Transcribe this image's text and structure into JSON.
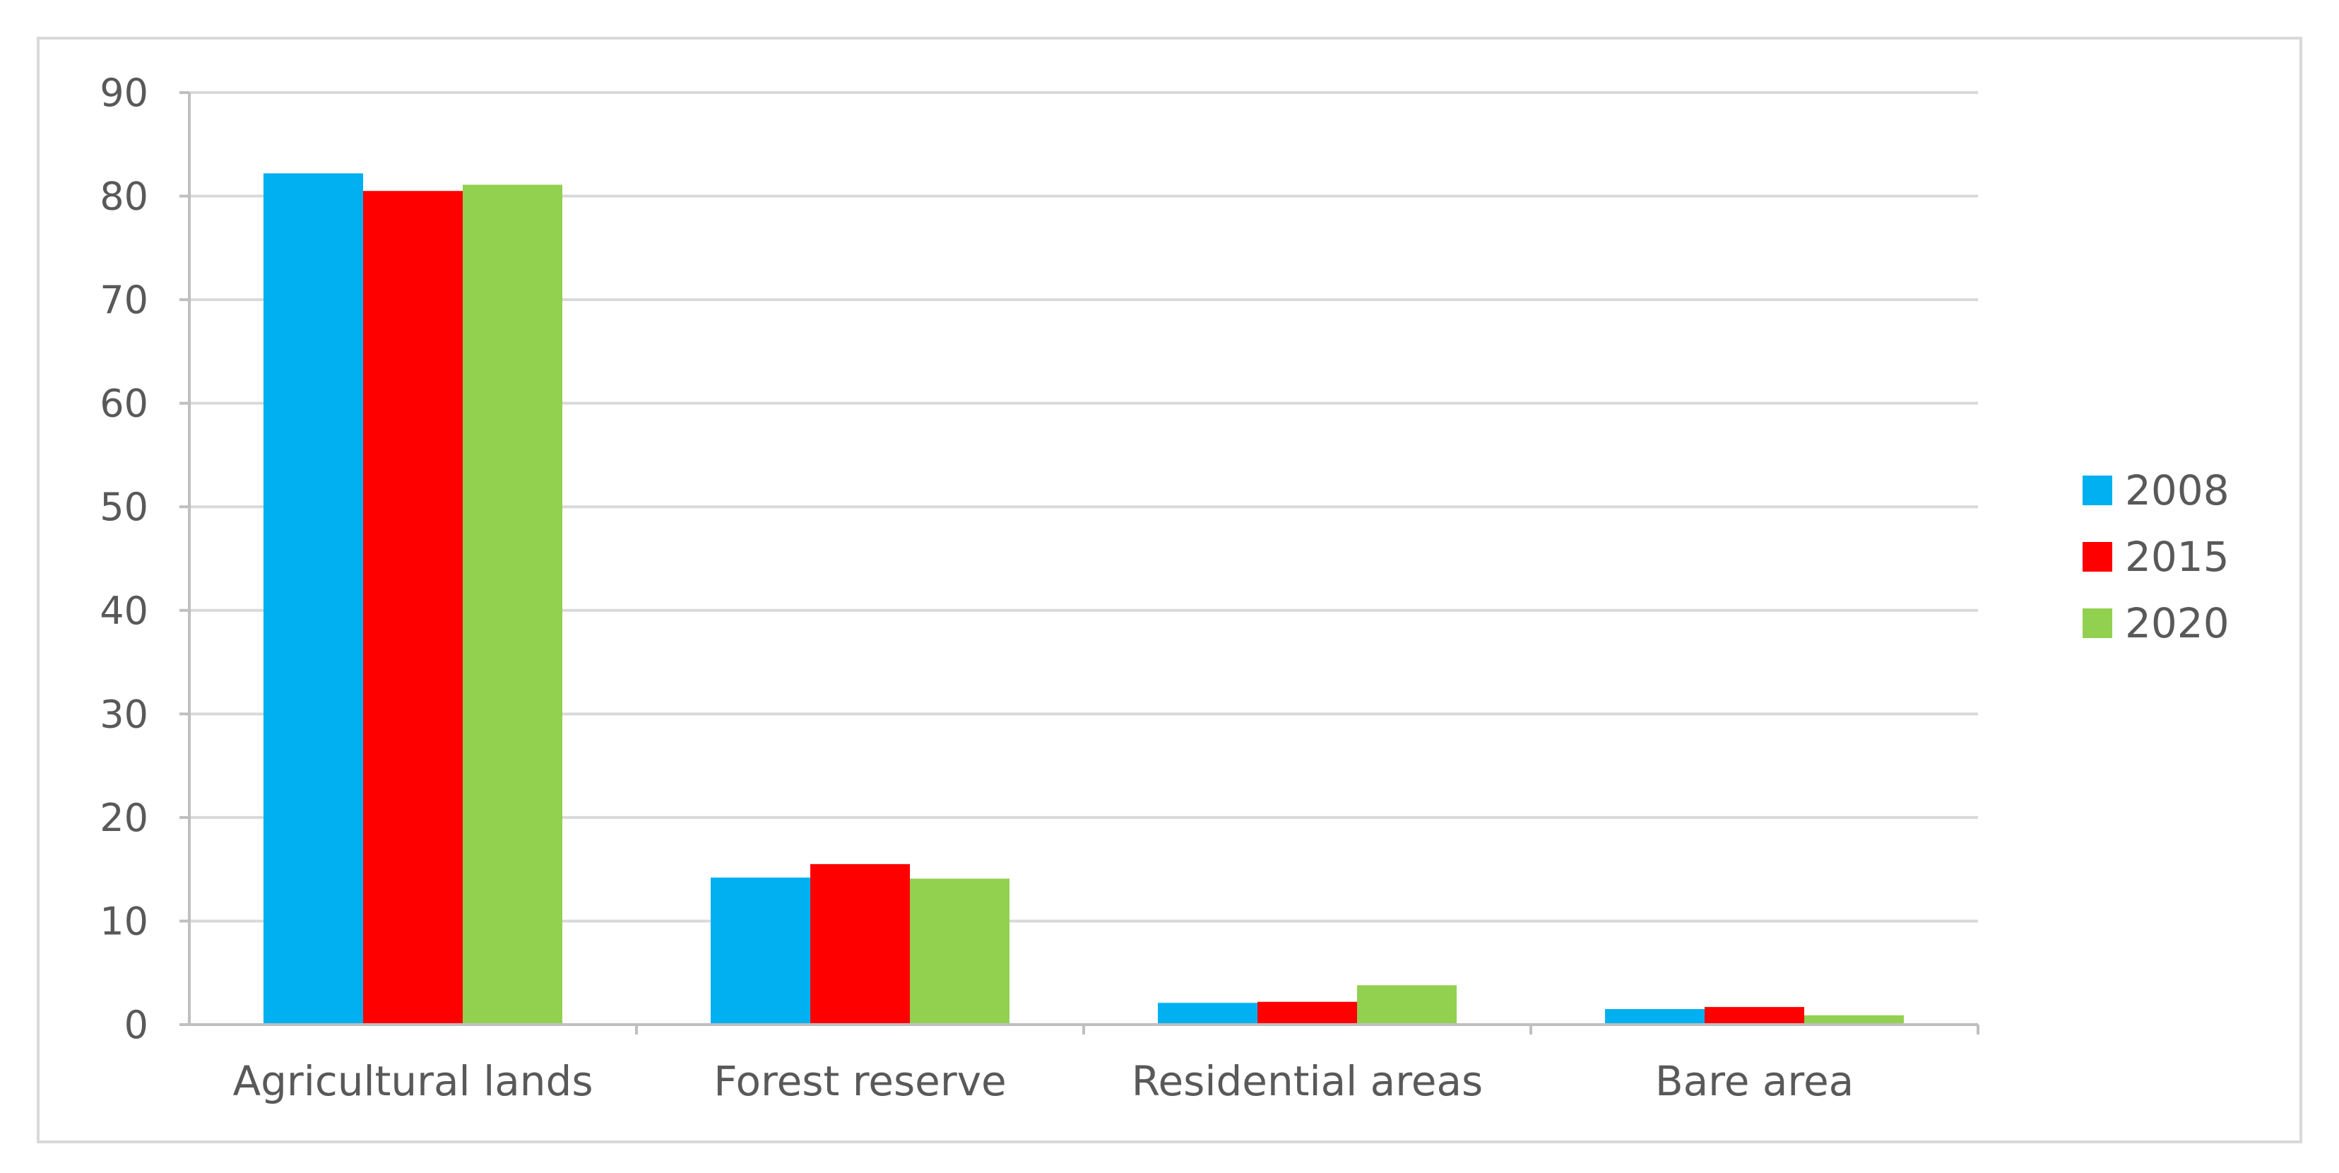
{
  "chart_data": {
    "type": "bar",
    "categories": [
      "Agricultural lands",
      "Forest reserve",
      "Residential areas",
      "Bare area"
    ],
    "series": [
      {
        "name": "2008",
        "color": "#00b0f0",
        "values": [
          82.2,
          14.2,
          2.1,
          1.5
        ]
      },
      {
        "name": "2015",
        "color": "#ff0000",
        "values": [
          80.5,
          15.5,
          2.2,
          1.7
        ]
      },
      {
        "name": "2020",
        "color": "#92d050",
        "values": [
          81.1,
          14.1,
          3.8,
          0.9
        ]
      }
    ],
    "ylim": [
      0,
      90
    ],
    "yticks": [
      0,
      10,
      20,
      30,
      40,
      50,
      60,
      70,
      80,
      90
    ],
    "grid": true,
    "legend_position": "right",
    "xlabel": "",
    "ylabel": "",
    "title": ""
  }
}
